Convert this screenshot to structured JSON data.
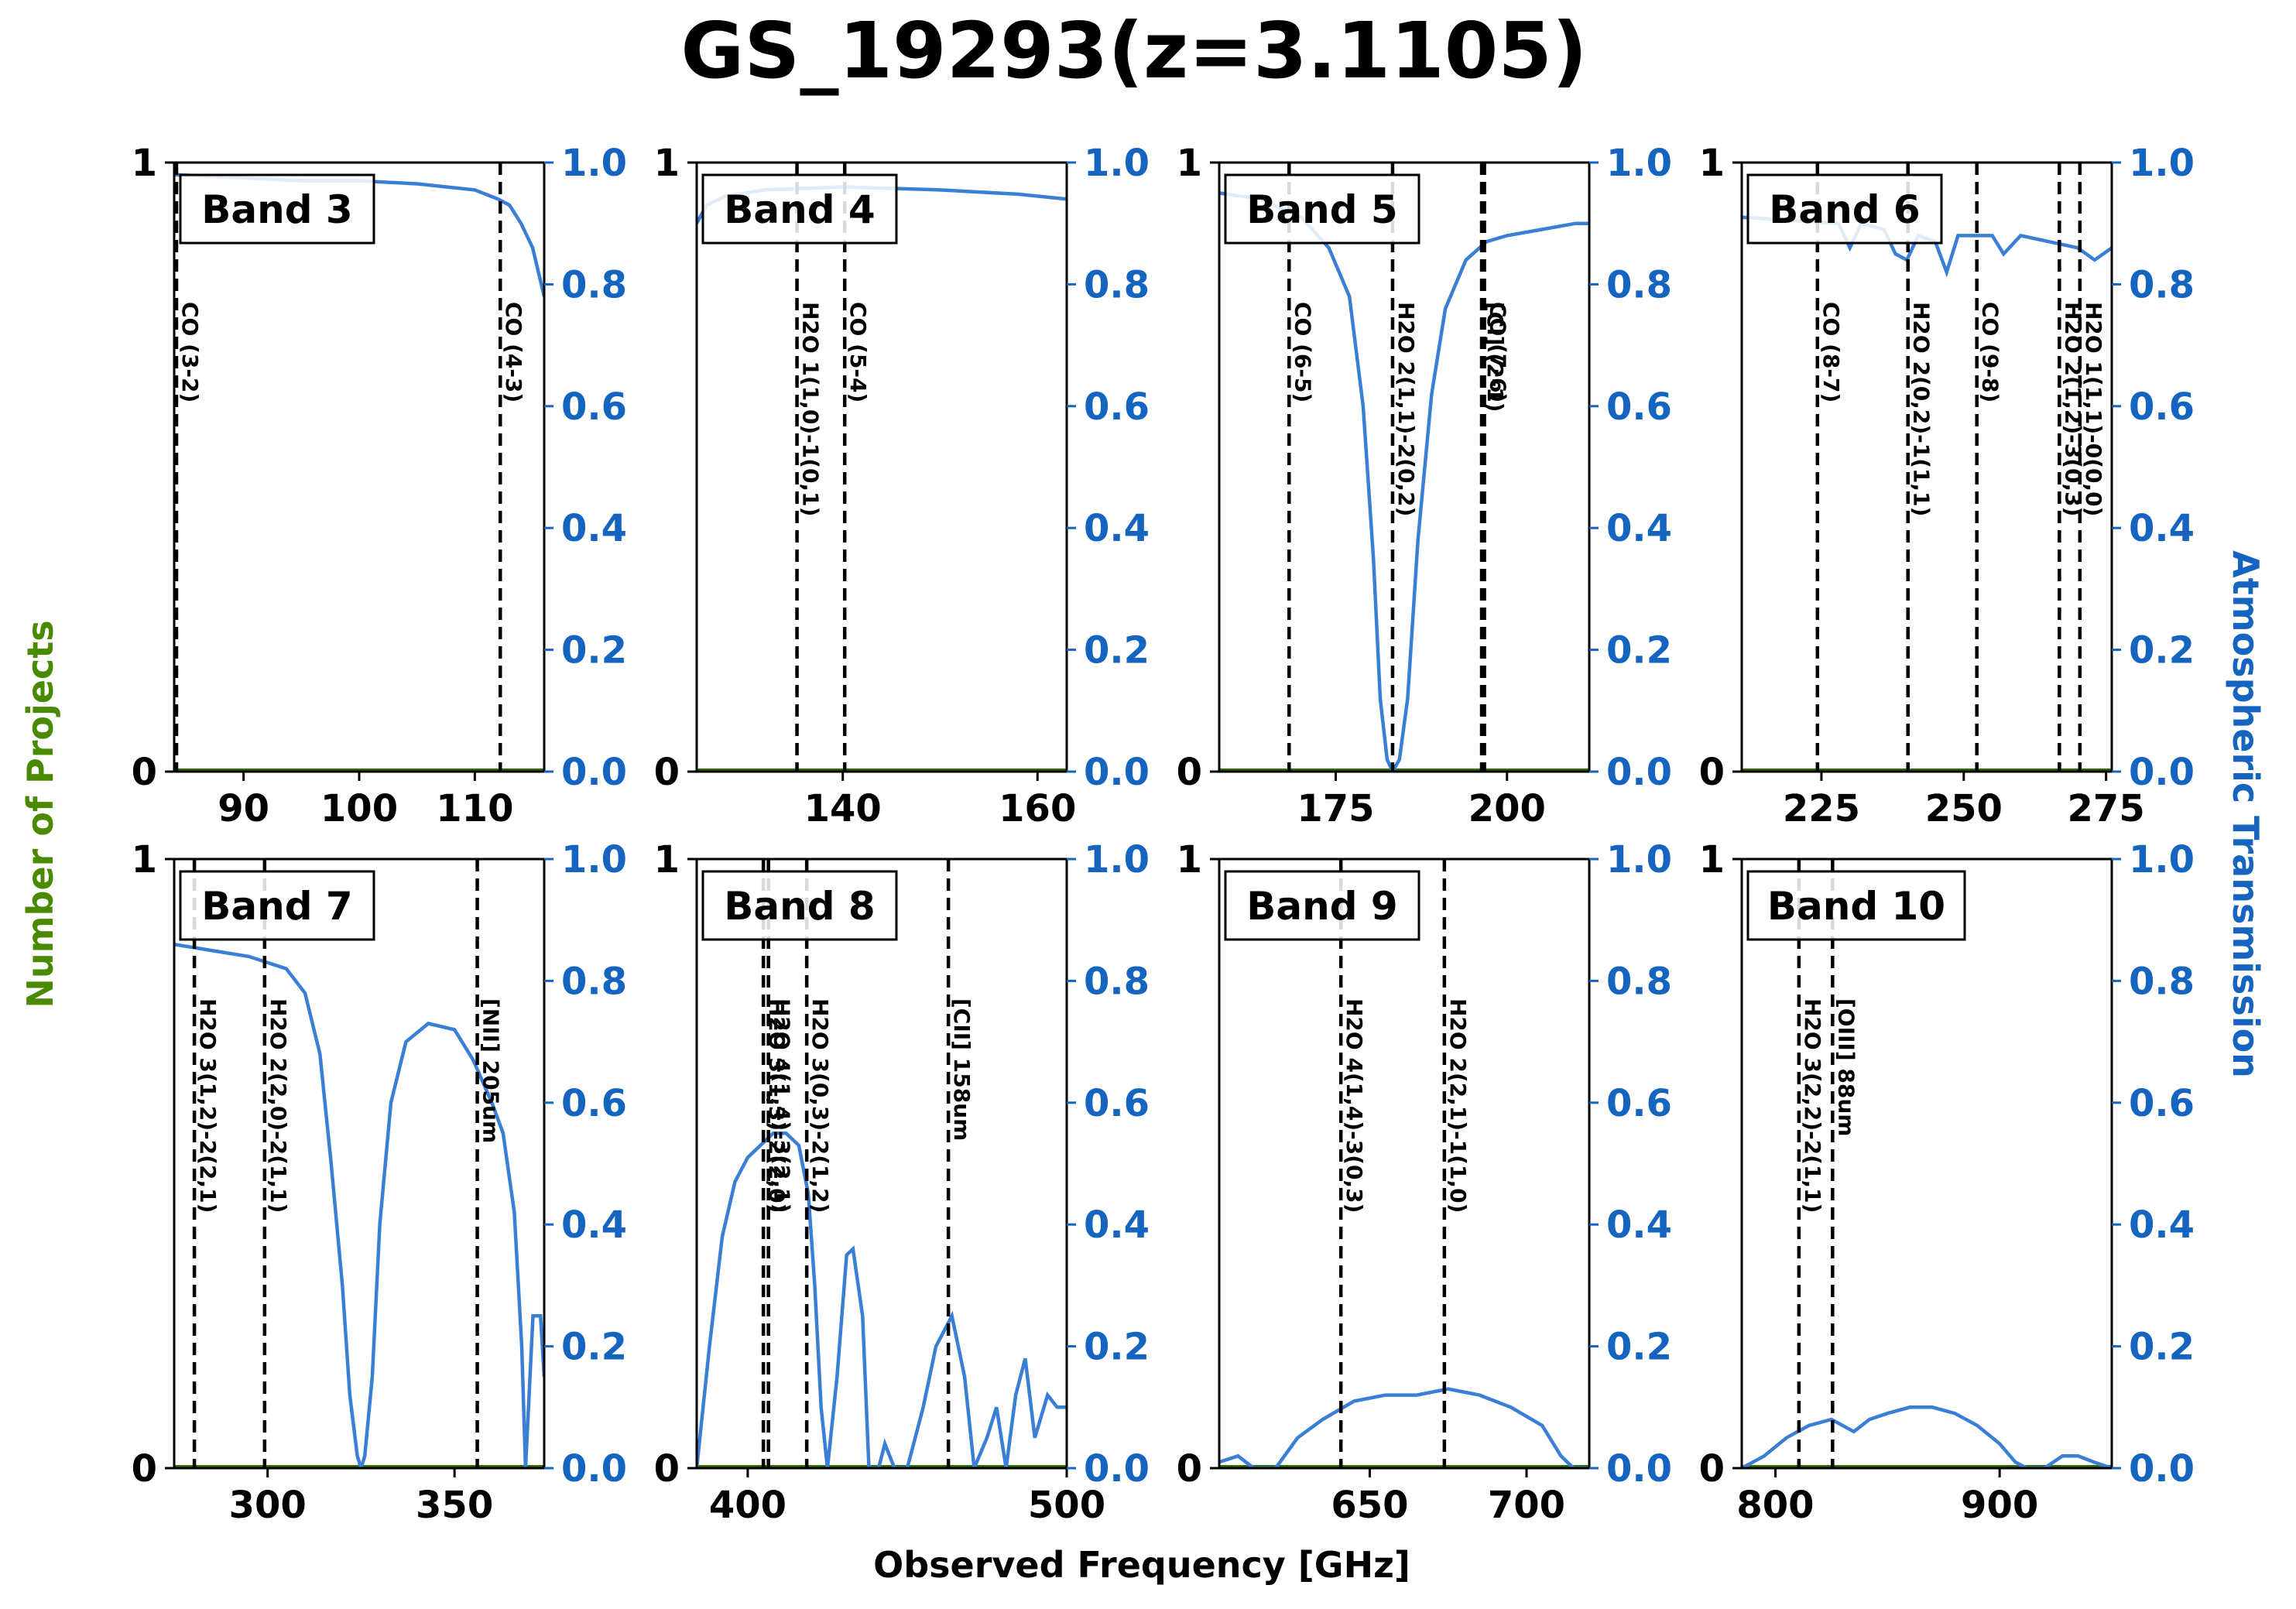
{
  "title": "GS_19293(z=3.1105)",
  "xlabel": "Observed Frequency [GHz]",
  "ylabel_left": "Number of Projects",
  "ylabel_right": "Atmospheric Transmission",
  "colors": {
    "transmission": "#3a7fd5",
    "left_axis_label": "#4a8a00",
    "right_axis": "#1565c0",
    "project_line": "#2e6b00"
  },
  "chart_data": [
    {
      "type": "line",
      "band": "Band 3",
      "xlim": [
        84,
        116
      ],
      "xticks": [
        90,
        100,
        110
      ],
      "yleft_ticks": [
        0,
        1
      ],
      "yright_ticks": [
        "0.0",
        "0.2",
        "0.4",
        "0.6",
        "0.8",
        "1.0"
      ],
      "lines": [
        {
          "x": 84.2,
          "label": "CO (3-2)"
        },
        {
          "x": 112.2,
          "label": "CO (4-3)"
        }
      ],
      "transmission": [
        [
          84,
          0.98
        ],
        [
          90,
          0.975
        ],
        [
          95,
          0.97
        ],
        [
          100,
          0.97
        ],
        [
          105,
          0.965
        ],
        [
          110,
          0.955
        ],
        [
          112,
          0.94
        ],
        [
          113,
          0.93
        ],
        [
          114,
          0.9
        ],
        [
          115,
          0.86
        ],
        [
          116,
          0.78
        ]
      ]
    },
    {
      "type": "line",
      "band": "Band 4",
      "xlim": [
        125,
        163
      ],
      "xticks": [
        140,
        160
      ],
      "yleft_ticks": [
        0,
        1
      ],
      "yright_ticks": [
        "0.0",
        "0.2",
        "0.4",
        "0.6",
        "0.8",
        "1.0"
      ],
      "lines": [
        {
          "x": 135.3,
          "label": "H2O 1(1,0)-1(0,1)"
        },
        {
          "x": 140.2,
          "label": "CO (5-4)"
        }
      ],
      "transmission": [
        [
          125,
          0.9
        ],
        [
          126,
          0.93
        ],
        [
          128,
          0.945
        ],
        [
          132,
          0.955
        ],
        [
          140,
          0.96
        ],
        [
          150,
          0.955
        ],
        [
          158,
          0.948
        ],
        [
          163,
          0.94
        ]
      ]
    },
    {
      "type": "line",
      "band": "Band 5",
      "xlim": [
        158,
        212
      ],
      "xticks": [
        175,
        200
      ],
      "yleft_ticks": [
        0,
        1
      ],
      "yright_ticks": [
        "0.0",
        "0.2",
        "0.4",
        "0.6",
        "0.8",
        "1.0"
      ],
      "lines": [
        {
          "x": 168.2,
          "label": "CO (6-5)"
        },
        {
          "x": 183.3,
          "label": "H2O 2(1,1)-2(0,2)"
        },
        {
          "x": 196.3,
          "label": "[CI] (2-1)"
        },
        {
          "x": 196.7,
          "label": "CO (7-6)"
        }
      ],
      "transmission": [
        [
          158,
          0.95
        ],
        [
          164,
          0.94
        ],
        [
          170,
          0.91
        ],
        [
          174,
          0.86
        ],
        [
          177,
          0.78
        ],
        [
          179,
          0.6
        ],
        [
          180.5,
          0.35
        ],
        [
          181.5,
          0.12
        ],
        [
          182.5,
          0.02
        ],
        [
          183.3,
          0.0
        ],
        [
          184.3,
          0.02
        ],
        [
          185.5,
          0.12
        ],
        [
          187,
          0.38
        ],
        [
          189,
          0.62
        ],
        [
          191,
          0.76
        ],
        [
          194,
          0.84
        ],
        [
          197,
          0.87
        ],
        [
          200,
          0.88
        ],
        [
          205,
          0.89
        ],
        [
          210,
          0.9
        ],
        [
          212,
          0.9
        ]
      ]
    },
    {
      "type": "line",
      "band": "Band 6",
      "xlim": [
        211,
        276
      ],
      "xticks": [
        225,
        250,
        275
      ],
      "yleft_ticks": [
        0,
        1
      ],
      "yright_ticks": [
        "0.0",
        "0.2",
        "0.4",
        "0.6",
        "0.8",
        "1.0"
      ],
      "lines": [
        {
          "x": 224.3,
          "label": "CO (8-7)"
        },
        {
          "x": 240.2,
          "label": "H2O 2(0,2)-1(1,1)"
        },
        {
          "x": 252.3,
          "label": "CO (9-8)"
        },
        {
          "x": 266.8,
          "label": "H2O 2(1,2)-3(0,3)"
        },
        {
          "x": 270.4,
          "label": "H2O 1(1,1)-0(0,0)"
        }
      ],
      "transmission": [
        [
          211,
          0.91
        ],
        [
          220,
          0.905
        ],
        [
          228,
          0.9
        ],
        [
          230,
          0.86
        ],
        [
          232,
          0.9
        ],
        [
          236,
          0.89
        ],
        [
          238,
          0.85
        ],
        [
          240,
          0.84
        ],
        [
          242,
          0.88
        ],
        [
          245,
          0.87
        ],
        [
          247,
          0.82
        ],
        [
          249,
          0.88
        ],
        [
          255,
          0.88
        ],
        [
          257,
          0.85
        ],
        [
          260,
          0.88
        ],
        [
          265,
          0.87
        ],
        [
          270,
          0.86
        ],
        [
          273,
          0.84
        ],
        [
          276,
          0.86
        ]
      ]
    },
    {
      "type": "line",
      "band": "Band 7",
      "xlim": [
        275,
        374
      ],
      "xticks": [
        300,
        350
      ],
      "yleft_ticks": [
        0,
        1
      ],
      "yright_ticks": [
        "0.0",
        "0.2",
        "0.4",
        "0.6",
        "0.8",
        "1.0"
      ],
      "lines": [
        {
          "x": 280.4,
          "label": "H2O 3(1,2)-2(2,1)"
        },
        {
          "x": 299.2,
          "label": "H2O 2(2,0)-2(1,1)"
        },
        {
          "x": 356.1,
          "label": "[NII] 205um"
        }
      ],
      "transmission": [
        [
          275,
          0.86
        ],
        [
          285,
          0.85
        ],
        [
          295,
          0.84
        ],
        [
          305,
          0.82
        ],
        [
          310,
          0.78
        ],
        [
          314,
          0.68
        ],
        [
          317,
          0.5
        ],
        [
          320,
          0.3
        ],
        [
          322,
          0.12
        ],
        [
          324,
          0.02
        ],
        [
          325,
          0.0
        ],
        [
          326,
          0.02
        ],
        [
          328,
          0.15
        ],
        [
          330,
          0.4
        ],
        [
          333,
          0.6
        ],
        [
          337,
          0.7
        ],
        [
          343,
          0.73
        ],
        [
          350,
          0.72
        ],
        [
          355,
          0.67
        ],
        [
          360,
          0.6
        ],
        [
          363,
          0.55
        ],
        [
          366,
          0.42
        ],
        [
          368,
          0.2
        ],
        [
          369,
          0.0
        ],
        [
          371,
          0.25
        ],
        [
          373,
          0.25
        ],
        [
          374,
          0.15
        ]
      ]
    },
    {
      "type": "line",
      "band": "Band 8",
      "xlim": [
        384,
        500
      ],
      "xticks": [
        400,
        500
      ],
      "yleft_ticks": [
        0,
        1
      ],
      "yright_ticks": [
        "0.0",
        "0.2",
        "0.4",
        "0.6",
        "0.8",
        "1.0"
      ],
      "lines": [
        {
          "x": 404.9,
          "label": "H2O 3(1,3)-2(2,0)"
        },
        {
          "x": 406.5,
          "label": "H2O 4(1,4)-3(2,1)"
        },
        {
          "x": 418.5,
          "label": "H2O 3(0,3)-2(1,2)"
        },
        {
          "x": 462.9,
          "label": "[CII] 158um"
        }
      ],
      "transmission": [
        [
          384,
          0.0
        ],
        [
          388,
          0.2
        ],
        [
          392,
          0.38
        ],
        [
          396,
          0.47
        ],
        [
          400,
          0.51
        ],
        [
          404,
          0.53
        ],
        [
          408,
          0.55
        ],
        [
          412,
          0.55
        ],
        [
          416,
          0.53
        ],
        [
          419,
          0.45
        ],
        [
          421,
          0.3
        ],
        [
          423,
          0.1
        ],
        [
          425,
          0.0
        ],
        [
          428,
          0.15
        ],
        [
          431,
          0.35
        ],
        [
          433,
          0.36
        ],
        [
          436,
          0.25
        ],
        [
          438,
          0.0
        ],
        [
          441,
          0.0
        ],
        [
          443,
          0.04
        ],
        [
          446,
          0.0
        ],
        [
          450,
          0.0
        ],
        [
          455,
          0.1
        ],
        [
          459,
          0.2
        ],
        [
          464,
          0.25
        ],
        [
          468,
          0.15
        ],
        [
          471,
          0.0
        ],
        [
          475,
          0.05
        ],
        [
          478,
          0.1
        ],
        [
          481,
          0.0
        ],
        [
          484,
          0.12
        ],
        [
          487,
          0.18
        ],
        [
          490,
          0.05
        ],
        [
          494,
          0.12
        ],
        [
          497,
          0.1
        ],
        [
          500,
          0.1
        ]
      ]
    },
    {
      "type": "line",
      "band": "Band 9",
      "xlim": [
        602,
        720
      ],
      "xticks": [
        650,
        700
      ],
      "yleft_ticks": [
        0,
        1
      ],
      "yright_ticks": [
        "0.0",
        "0.2",
        "0.4",
        "0.6",
        "0.8",
        "1.0"
      ],
      "lines": [
        {
          "x": 640.8,
          "label": "H2O 4(1,4)-3(0,3)"
        },
        {
          "x": 673.8,
          "label": "H2O 2(2,1)-1(1,0)"
        }
      ],
      "transmission": [
        [
          602,
          0.01
        ],
        [
          608,
          0.02
        ],
        [
          613,
          0.0
        ],
        [
          620,
          0.0
        ],
        [
          627,
          0.05
        ],
        [
          635,
          0.08
        ],
        [
          645,
          0.11
        ],
        [
          655,
          0.12
        ],
        [
          665,
          0.12
        ],
        [
          675,
          0.13
        ],
        [
          685,
          0.12
        ],
        [
          695,
          0.1
        ],
        [
          705,
          0.07
        ],
        [
          711,
          0.02
        ],
        [
          715,
          0.0
        ],
        [
          720,
          0.0
        ]
      ]
    },
    {
      "type": "line",
      "band": "Band 10",
      "xlim": [
        785,
        950
      ],
      "xticks": [
        800,
        900
      ],
      "yleft_ticks": [
        0,
        1
      ],
      "yright_ticks": [
        "0.0",
        "0.2",
        "0.4",
        "0.6",
        "0.8",
        "1.0"
      ],
      "lines": [
        {
          "x": 810.5,
          "label": "H2O 3(2,2)-2(1,1)"
        },
        {
          "x": 825.5,
          "label": "[OIII] 88um"
        }
      ],
      "transmission": [
        [
          785,
          0.0
        ],
        [
          795,
          0.02
        ],
        [
          805,
          0.05
        ],
        [
          815,
          0.07
        ],
        [
          825,
          0.08
        ],
        [
          835,
          0.06
        ],
        [
          842,
          0.08
        ],
        [
          850,
          0.09
        ],
        [
          860,
          0.1
        ],
        [
          870,
          0.1
        ],
        [
          880,
          0.09
        ],
        [
          890,
          0.07
        ],
        [
          900,
          0.04
        ],
        [
          907,
          0.01
        ],
        [
          912,
          0.0
        ],
        [
          920,
          0.0
        ],
        [
          928,
          0.02
        ],
        [
          935,
          0.02
        ],
        [
          942,
          0.01
        ],
        [
          950,
          0.0
        ]
      ]
    }
  ]
}
